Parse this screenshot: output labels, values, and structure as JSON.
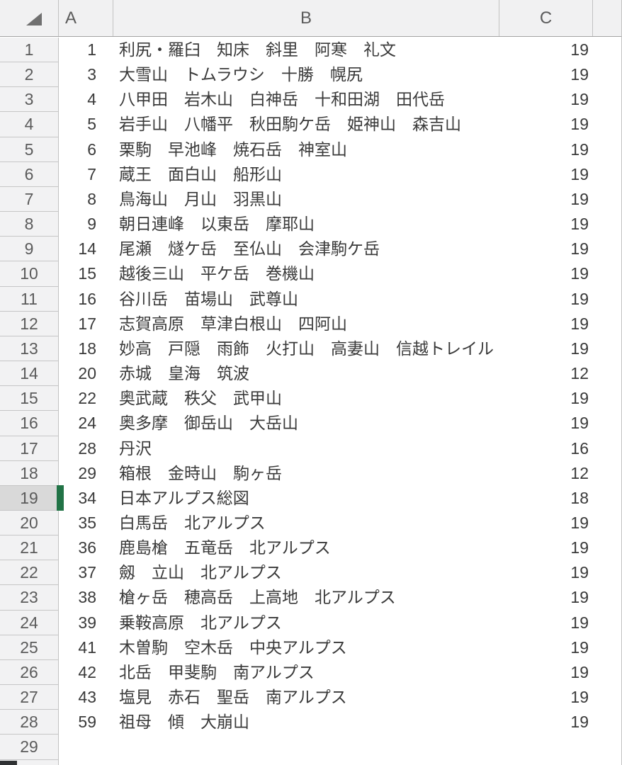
{
  "app": "spreadsheet",
  "columns": [
    "A",
    "B",
    "C"
  ],
  "selected_row": 19,
  "icons": {
    "select_all": "lower-right-triangle"
  },
  "colors": {
    "selection_green": "#217346",
    "header_bg": "#f1f1f2",
    "selected_row_header_bg": "#d9d9d9",
    "gridline": "#c2c2c2"
  },
  "rows": [
    {
      "n": "1",
      "a": "1",
      "b": "利尻・羅臼　知床　斜里　阿寒　礼文",
      "c": "19"
    },
    {
      "n": "2",
      "a": "3",
      "b": "大雪山　トムラウシ　十勝　幌尻",
      "c": "19"
    },
    {
      "n": "3",
      "a": "4",
      "b": "八甲田　岩木山　白神岳　十和田湖　田代岳",
      "c": "19"
    },
    {
      "n": "4",
      "a": "5",
      "b": "岩手山　八幡平　秋田駒ケ岳　姫神山　森吉山",
      "c": "19"
    },
    {
      "n": "5",
      "a": "6",
      "b": "栗駒　早池峰　焼石岳　神室山",
      "c": "19"
    },
    {
      "n": "6",
      "a": "7",
      "b": "蔵王　面白山　船形山",
      "c": "19"
    },
    {
      "n": "7",
      "a": "8",
      "b": "鳥海山　月山　羽黒山",
      "c": "19"
    },
    {
      "n": "8",
      "a": "9",
      "b": "朝日連峰　以東岳　摩耶山",
      "c": "19"
    },
    {
      "n": "9",
      "a": "14",
      "b": "尾瀬　燧ケ岳　至仏山　会津駒ケ岳",
      "c": "19"
    },
    {
      "n": "10",
      "a": "15",
      "b": "越後三山　平ケ岳　巻機山",
      "c": "19"
    },
    {
      "n": "11",
      "a": "16",
      "b": "谷川岳　苗場山　武尊山",
      "c": "19"
    },
    {
      "n": "12",
      "a": "17",
      "b": "志賀高原　草津白根山　四阿山",
      "c": "19"
    },
    {
      "n": "13",
      "a": "18",
      "b": "妙高　戸隠　雨飾　火打山　高妻山　信越トレイル",
      "c": "19"
    },
    {
      "n": "14",
      "a": "20",
      "b": "赤城　皇海　筑波",
      "c": "12"
    },
    {
      "n": "15",
      "a": "22",
      "b": "奥武蔵　秩父　武甲山",
      "c": "19"
    },
    {
      "n": "16",
      "a": "24",
      "b": "奥多摩　御岳山　大岳山",
      "c": "19"
    },
    {
      "n": "17",
      "a": "28",
      "b": "丹沢",
      "c": "16"
    },
    {
      "n": "18",
      "a": "29",
      "b": "箱根　金時山　駒ヶ岳",
      "c": "12"
    },
    {
      "n": "19",
      "a": "34",
      "b": "日本アルプス総図",
      "c": "18"
    },
    {
      "n": "20",
      "a": "35",
      "b": "白馬岳　北アルプス",
      "c": "19"
    },
    {
      "n": "21",
      "a": "36",
      "b": "鹿島槍　五竜岳　北アルプス",
      "c": "19"
    },
    {
      "n": "22",
      "a": "37",
      "b": "劔　立山　北アルプス",
      "c": "19"
    },
    {
      "n": "23",
      "a": "38",
      "b": "槍ヶ岳　穂高岳　上高地　北アルプス",
      "c": "19"
    },
    {
      "n": "24",
      "a": "39",
      "b": "乗鞍高原　北アルプス",
      "c": "19"
    },
    {
      "n": "25",
      "a": "41",
      "b": "木曽駒　空木岳　中央アルプス",
      "c": "19"
    },
    {
      "n": "26",
      "a": "42",
      "b": "北岳　甲斐駒　南アルプス",
      "c": "19"
    },
    {
      "n": "27",
      "a": "43",
      "b": "塩見　赤石　聖岳　南アルプス",
      "c": "19"
    },
    {
      "n": "28",
      "a": "59",
      "b": "祖母　傾　大崩山",
      "c": "19"
    },
    {
      "n": "29",
      "a": "",
      "b": "",
      "c": ""
    }
  ]
}
